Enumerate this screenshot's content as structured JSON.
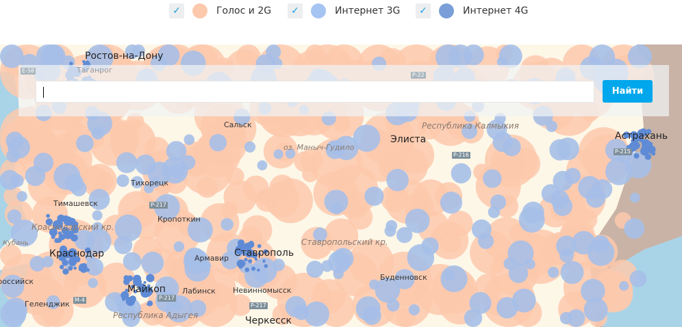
{
  "legend": [
    {
      "label": "Голос и 2G",
      "checked": true,
      "color": "#fdc9ad"
    },
    {
      "label": "Интернет 3G",
      "checked": true,
      "color": "#a6c4f2"
    },
    {
      "label": "Интернет 4G",
      "checked": true,
      "color": "#7a9fd8"
    }
  ],
  "search": {
    "value": "",
    "button_label": "Найти"
  },
  "map": {
    "colors": {
      "land": "#fdf7e8",
      "voice2g": "#fdc9ad",
      "net3g": "#a6bfe8",
      "net4g": "#5f8bd6",
      "sea": "#a9d4e8",
      "foreign": "#c9b3a6"
    },
    "cities": [
      "Ростов-на-Дону",
      "Таганрог",
      "Сальск",
      "Элиста",
      "Астрахань",
      "Тихорецк",
      "Тимашевск",
      "Кропоткин",
      "Краснодар",
      "Армавир",
      "Ставрополь",
      "Буденновск",
      "Майкоп",
      "Лабинск",
      "Невинномысск",
      "Геленджик",
      "Новороссийск",
      "Черкесск"
    ],
    "regions": [
      "Республика Калмыкия",
      "Краснодарский кр.",
      "Ставропольский кр.",
      "Республика Адыгея"
    ],
    "water": [
      "оз. Маныч-Гудило",
      "Кубань"
    ],
    "roads": [
      "E-58",
      "P-22",
      "P-216",
      "P-215",
      "P-217",
      "P-217",
      "M-4",
      "P-217"
    ]
  }
}
